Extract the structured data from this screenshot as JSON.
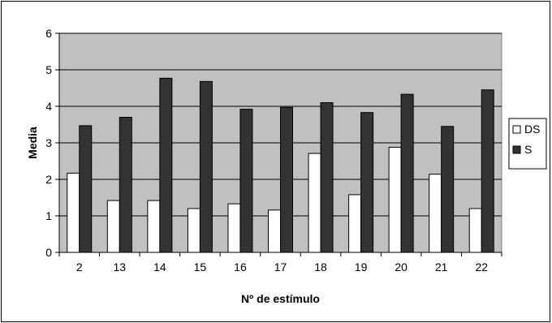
{
  "chart_data": {
    "type": "bar",
    "title": "",
    "xlabel": "Nº de estímulo",
    "ylabel": "Media",
    "ylim": [
      0,
      6
    ],
    "yticks": [
      "0",
      "1",
      "2",
      "3",
      "4",
      "5",
      "6"
    ],
    "grid": true,
    "legend_position": "right",
    "categories": [
      "2",
      "13",
      "14",
      "15",
      "16",
      "17",
      "18",
      "19",
      "20",
      "21",
      "22"
    ],
    "series": [
      {
        "name": "DS",
        "color": "#ffffff",
        "values": [
          2.17,
          1.42,
          1.42,
          1.2,
          1.33,
          1.16,
          2.71,
          1.58,
          2.88,
          2.14,
          1.2
        ]
      },
      {
        "name": "S",
        "color": "#333333",
        "values": [
          3.47,
          3.7,
          4.77,
          4.68,
          3.92,
          3.97,
          4.1,
          3.83,
          4.33,
          3.45,
          4.45
        ]
      }
    ],
    "plot_background": "#c0c0c0"
  }
}
